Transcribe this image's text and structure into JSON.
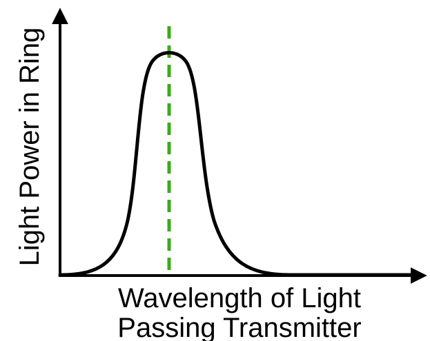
{
  "diagram": {
    "y_axis_label": "Light Power in Ring",
    "x_axis_label_line1": "Wavelength of Light",
    "x_axis_label_line2": "Passing Transmitter",
    "colors": {
      "axis": "#000000",
      "curve": "#000000",
      "marker": "#3aaa1a"
    },
    "curve_shape": "resonance-peak",
    "marker_style": "dashed-vertical-line-at-peak"
  }
}
